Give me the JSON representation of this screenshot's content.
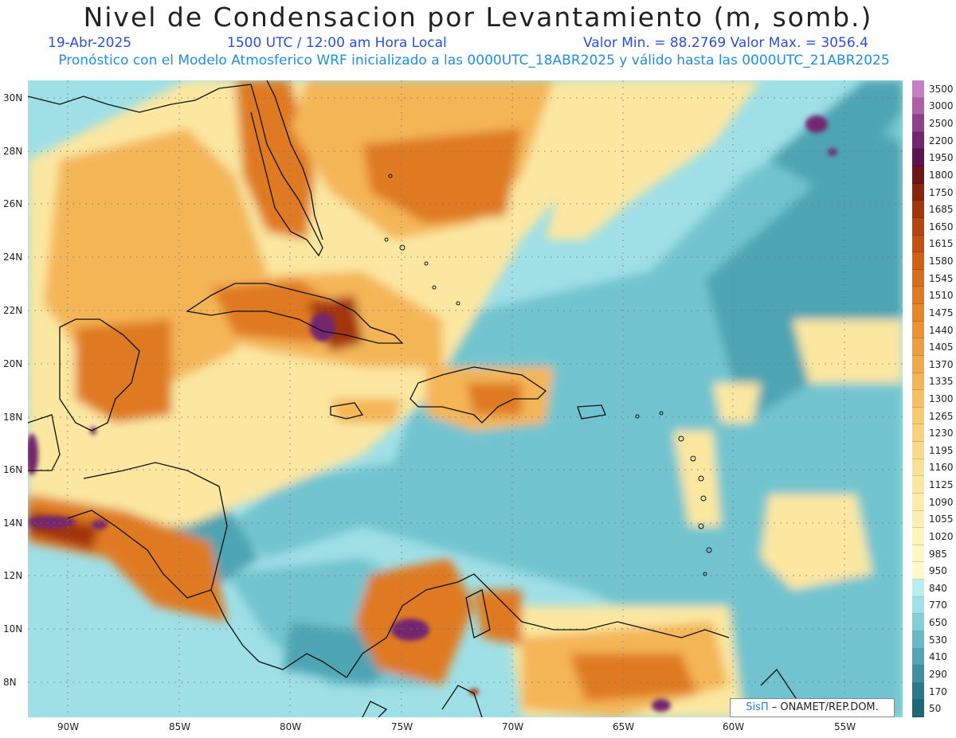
{
  "title": "Nivel de Condensacion por Levantamiento (m, somb.)",
  "date": "19-Abr-2025",
  "time": "1500 UTC / 12:00 am Hora Local",
  "min_max": "Valor Min. = 88.2769  Valor Max. = 3056.4",
  "model_line": "Pronóstico con el Modelo Atmosferico WRF inicializado a las 0000UTC_18ABR2025 y válido hasta las  0000UTC_21ABR2025",
  "credit": {
    "sis": "SisΠ",
    "org": "– ONAMET/REP.DOM."
  },
  "lat_labels": [
    "30N",
    "28N",
    "26N",
    "24N",
    "22N",
    "20N",
    "18N",
    "16N",
    "14N",
    "12N",
    "10N",
    "8N"
  ],
  "lon_labels": [
    "90W",
    "85W",
    "80W",
    "75W",
    "70W",
    "65W",
    "60W",
    "55W"
  ],
  "legend": {
    "levels": [
      "3500",
      "3000",
      "2500",
      "2200",
      "1950",
      "1800",
      "1750",
      "1685",
      "1650",
      "1615",
      "1580",
      "1545",
      "1510",
      "1475",
      "1440",
      "1405",
      "1370",
      "1335",
      "1300",
      "1265",
      "1230",
      "1195",
      "1160",
      "1125",
      "1090",
      "1055",
      "1020",
      "985",
      "950",
      "840",
      "770",
      "650",
      "530",
      "410",
      "290",
      "170",
      "50"
    ],
    "colors": [
      "#c77ec7",
      "#ad5fa8",
      "#8f3f8c",
      "#73256f",
      "#5c1150",
      "#6e1515",
      "#8a2410",
      "#a3360c",
      "#b4460f",
      "#c25212",
      "#cf6016",
      "#d86d1c",
      "#df7a22",
      "#e5862b",
      "#ea9234",
      "#ee9e3e",
      "#f1aa4a",
      "#f4b556",
      "#f6c063",
      "#f8ca70",
      "#f9d27d",
      "#fada89",
      "#fbe195",
      "#fbe7a0",
      "#fcedaa",
      "#fcf1b3",
      "#fdf4bb",
      "#fdf7c3",
      "#fef9ca",
      "#b6eef1",
      "#9fe1e8",
      "#82cfd9",
      "#67bac8",
      "#51a5b5",
      "#3d8fa1",
      "#2b7a8c",
      "#1f6678"
    ]
  },
  "map_colors": {
    "ocean_light": "#9fdfe6",
    "ocean_mid": "#71c4cf",
    "ocean_dark": "#4ea4b2",
    "low_yellow": "#fbe7a0",
    "orange_light": "#f4b556",
    "orange": "#df7a22",
    "brown": "#a3360c",
    "purple": "#73256f",
    "coast": "#111111"
  }
}
